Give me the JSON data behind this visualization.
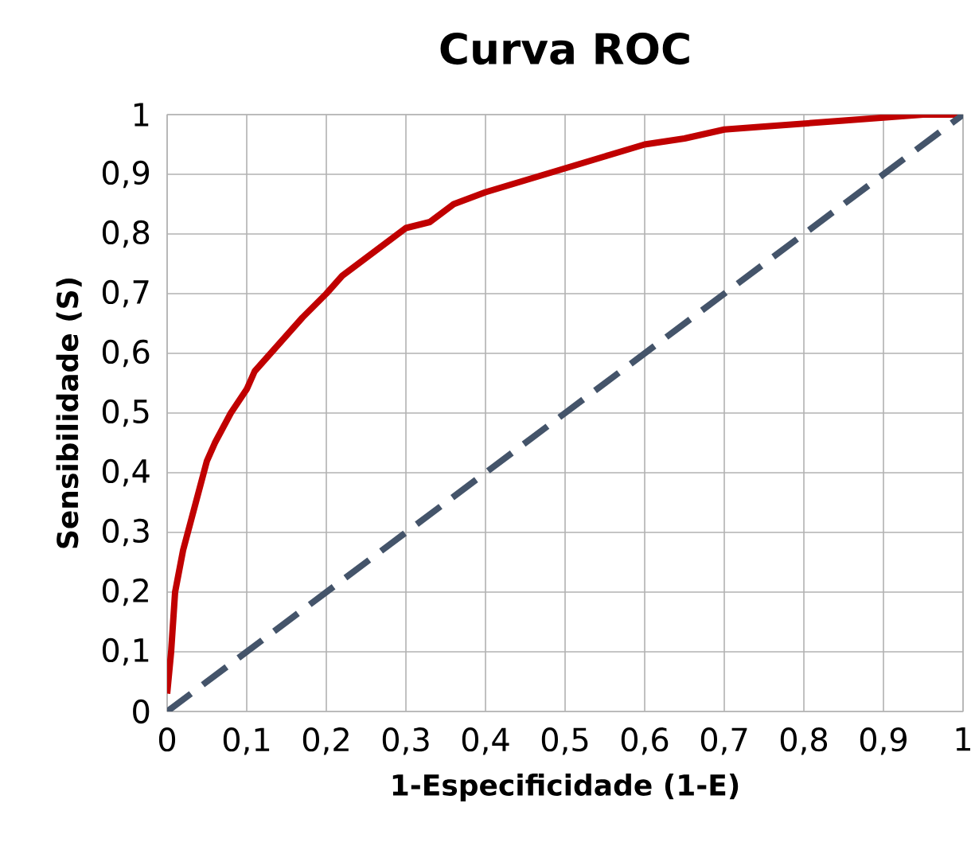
{
  "chart_data": {
    "type": "line",
    "title": "Curva ROC",
    "xlabel": "1-Especificidade (1-E)",
    "ylabel": "Sensibilidade (S)",
    "xlim": [
      0,
      1
    ],
    "ylim": [
      0,
      1
    ],
    "xticks": [
      0,
      {
        "value": 0.1,
        "label": "0,1"
      },
      {
        "value": 0.2,
        "label": "0,2"
      },
      {
        "value": 0.3,
        "label": "0,3"
      },
      {
        "value": 0.4,
        "label": "0,4"
      },
      {
        "value": 0.5,
        "label": "0,5"
      },
      {
        "value": 0.6,
        "label": "0,6"
      },
      {
        "value": 0.7,
        "label": "0,7"
      },
      {
        "value": 0.8,
        "label": "0,8"
      },
      {
        "value": 0.9,
        "label": "0,9"
      },
      1
    ],
    "yticks": [
      0,
      {
        "value": 0.1,
        "label": "0,1"
      },
      {
        "value": 0.2,
        "label": "0,2"
      },
      {
        "value": 0.3,
        "label": "0,3"
      },
      {
        "value": 0.4,
        "label": "0,4"
      },
      {
        "value": 0.5,
        "label": "0,5"
      },
      {
        "value": 0.6,
        "label": "0,6"
      },
      {
        "value": 0.7,
        "label": "0,7"
      },
      {
        "value": 0.8,
        "label": "0,8"
      },
      {
        "value": 0.9,
        "label": "0,9"
      },
      1
    ],
    "grid": true,
    "marker": "none",
    "series": [
      {
        "color": "#c00000",
        "line_style": "solid",
        "x": [
          0,
          0.005,
          0.01,
          0.02,
          0.03,
          0.04,
          0.05,
          0.06,
          0.08,
          0.1,
          0.11,
          0.13,
          0.15,
          0.17,
          0.2,
          0.22,
          0.25,
          0.28,
          0.3,
          0.33,
          0.36,
          0.4,
          0.45,
          0.5,
          0.55,
          0.6,
          0.65,
          0.7,
          0.75,
          0.8,
          0.85,
          0.9,
          0.95,
          1
        ],
        "values": [
          0.03,
          0.1,
          0.2,
          0.27,
          0.32,
          0.37,
          0.42,
          0.45,
          0.5,
          0.54,
          0.57,
          0.6,
          0.63,
          0.66,
          0.7,
          0.73,
          0.76,
          0.79,
          0.81,
          0.82,
          0.85,
          0.87,
          0.89,
          0.91,
          0.93,
          0.95,
          0.96,
          0.975,
          0.98,
          0.985,
          0.99,
          0.995,
          1,
          1
        ]
      },
      {
        "color": "#44546a",
        "line_style": "dashed",
        "x": [
          0,
          1
        ],
        "values": [
          0,
          1
        ]
      }
    ]
  }
}
